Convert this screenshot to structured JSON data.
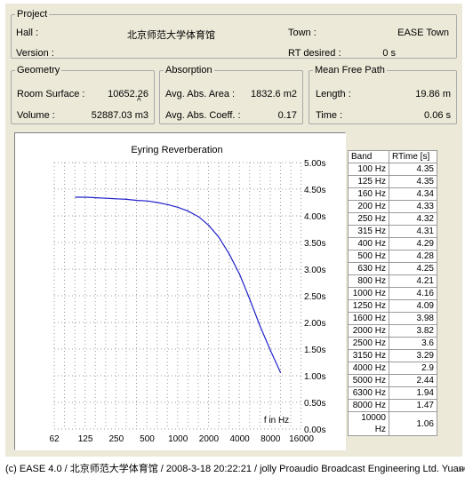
{
  "project": {
    "legend": "Project",
    "hall_label": "Hall :",
    "hall_value": "北京师范大学体育馆",
    "town_label": "Town :",
    "town_value": "EASE Town",
    "version_label": "Version :",
    "version_value": "",
    "rt_desired_label": "RT desired :",
    "rt_desired_value": "0 s"
  },
  "geometry": {
    "legend": "Geometry",
    "surface_label": "Room Surface :",
    "surface_value": "10652.26",
    "surface_unit_glyph": "^",
    "volume_label": "Volume :",
    "volume_value": "52887.03 m3"
  },
  "absorption": {
    "legend": "Absorption",
    "area_label": "Avg. Abs. Area :",
    "area_value": "1832.6 m2",
    "coeff_label": "Avg. Abs. Coeff. :",
    "coeff_value": "0.17"
  },
  "mean_free_path": {
    "legend": "Mean Free Path",
    "length_label": "Length :",
    "length_value": "19.86 m",
    "time_label": "Time :",
    "time_value": "0.06 s"
  },
  "chart_data": {
    "type": "line",
    "title": "Eyring Reverberation",
    "xlabel": "f in Hz",
    "ylabel": "",
    "x_scale": "log",
    "x_ticks": [
      62,
      125,
      250,
      500,
      1000,
      2000,
      4000,
      8000,
      16000
    ],
    "x_tick_labels": [
      "62",
      "125",
      "250",
      "500",
      "1000",
      "2000",
      "4000",
      "8000",
      "16000"
    ],
    "y_ticks": [
      0,
      0.5,
      1,
      1.5,
      2,
      2.5,
      3,
      3.5,
      4,
      4.5,
      5
    ],
    "y_tick_labels": [
      "0.00s",
      "0.50s",
      "1.00s",
      "1.50s",
      "2.00s",
      "2.50s",
      "3.00s",
      "3.50s",
      "4.00s",
      "4.50s",
      "5.00s"
    ],
    "ylim": [
      0,
      5
    ],
    "grid": true,
    "line_color": "#2222cc",
    "series": [
      {
        "x": [
          100,
          125,
          160,
          200,
          250,
          315,
          400,
          500,
          630,
          800,
          1000,
          1250,
          1600,
          2000,
          2500,
          3150,
          4000,
          5000,
          6300,
          8000,
          10000
        ],
        "values": [
          4.35,
          4.35,
          4.34,
          4.33,
          4.32,
          4.31,
          4.29,
          4.28,
          4.25,
          4.21,
          4.16,
          4.09,
          3.98,
          3.82,
          3.6,
          3.29,
          2.9,
          2.44,
          1.94,
          1.47,
          1.06
        ]
      }
    ]
  },
  "table": {
    "headers": [
      "Band",
      "RTime [s]"
    ],
    "rows": [
      [
        "100 Hz",
        "4.35"
      ],
      [
        "125 Hz",
        "4.35"
      ],
      [
        "160 Hz",
        "4.34"
      ],
      [
        "200 Hz",
        "4.33"
      ],
      [
        "250 Hz",
        "4.32"
      ],
      [
        "315 Hz",
        "4.31"
      ],
      [
        "400 Hz",
        "4.29"
      ],
      [
        "500 Hz",
        "4.28"
      ],
      [
        "630 Hz",
        "4.25"
      ],
      [
        "800 Hz",
        "4.21"
      ],
      [
        "1000 Hz",
        "4.16"
      ],
      [
        "1250 Hz",
        "4.09"
      ],
      [
        "1600 Hz",
        "3.98"
      ],
      [
        "2000 Hz",
        "3.82"
      ],
      [
        "2500 Hz",
        "3.6"
      ],
      [
        "3150 Hz",
        "3.29"
      ],
      [
        "4000 Hz",
        "2.9"
      ],
      [
        "5000 Hz",
        "2.44"
      ],
      [
        "6300 Hz",
        "1.94"
      ],
      [
        "8000 Hz",
        "1.47"
      ],
      [
        "10000 Hz",
        "1.06"
      ]
    ]
  },
  "footer": {
    "text": "(c) EASE 4.0  / 北京师范大学体育馆  / 2008-3-18 20:22:21 / jolly Proaudio Broadcast Engineering Ltd. Yuan",
    "return_glyph": "↵"
  }
}
